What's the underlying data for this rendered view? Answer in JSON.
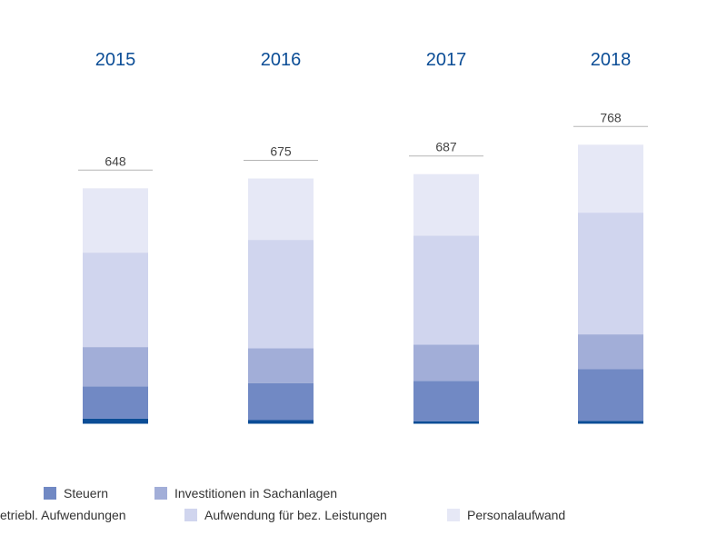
{
  "chart_data": {
    "type": "bar",
    "stacked": true,
    "categories": [
      "2015",
      "2016",
      "2017",
      "2018"
    ],
    "totals": [
      "648",
      "675",
      "687",
      "768"
    ],
    "series": [
      {
        "name": "sonst. betriebl. Aufwendungen",
        "legend_label": "etriebl. Aufwendungen",
        "color": "#0b4d96",
        "values": [
          14,
          10,
          7,
          8
        ]
      },
      {
        "name": "Steuern",
        "legend_label": "Steuern",
        "color": "#7189c4",
        "values": [
          89,
          102,
          111,
          142
        ]
      },
      {
        "name": "Investitionen in Sachanlagen",
        "legend_label": "Investitionen in Sachanlagen",
        "color": "#a2aed8",
        "values": [
          108,
          96,
          100,
          96
        ]
      },
      {
        "name": "Aufwendung für bez. Leistungen",
        "legend_label": "Aufwendung für bez. Leistungen",
        "color": "#d0d5ee",
        "values": [
          260,
          298,
          300,
          335
        ]
      },
      {
        "name": "Personalaufwand",
        "legend_label": "Personalaufwand",
        "color": "#e6e8f6",
        "values": [
          177,
          169,
          169,
          187
        ]
      }
    ],
    "legend_rows": [
      [
        "Steuern",
        "Investitionen in Sachanlagen"
      ],
      [
        "sonst. betriebl. Aufwendungen",
        "Aufwendung für bez. Leistungen",
        "Personalaufwand"
      ]
    ],
    "legend_position": "bottom",
    "grid": false
  }
}
